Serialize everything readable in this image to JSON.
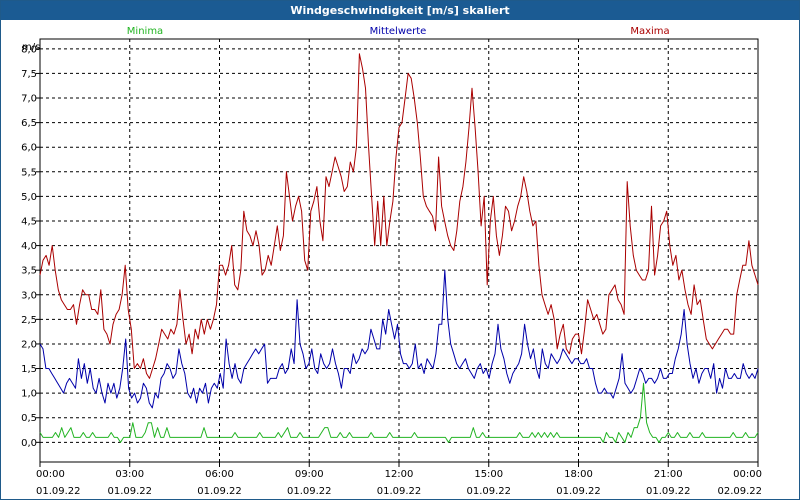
{
  "window": {
    "title": "Windgeschwindigkeit [m/s] skaliert"
  },
  "chart_data": {
    "type": "line",
    "y_unit_label": "m/s",
    "ylim": [
      -0.4,
      8.2
    ],
    "y_ticks": [
      "0,0",
      "0,5",
      "1,0",
      "1,5",
      "2,0",
      "2,5",
      "3,0",
      "3,5",
      "4,0",
      "4,5",
      "5,0",
      "5,5",
      "6,0",
      "6,5",
      "7,0",
      "7,5",
      "8,0"
    ],
    "x_range_hours": [
      0,
      24
    ],
    "x_ticks": [
      {
        "time": "00:00",
        "date": "01.09.22"
      },
      {
        "time": "03:00",
        "date": "01.09.22"
      },
      {
        "time": "06:00",
        "date": "01.09.22"
      },
      {
        "time": "09:00",
        "date": "01.09.22"
      },
      {
        "time": "12:00",
        "date": "01.09.22"
      },
      {
        "time": "15:00",
        "date": "01.09.22"
      },
      {
        "time": "18:00",
        "date": "01.09.22"
      },
      {
        "time": "21:00",
        "date": "01.09.22"
      },
      {
        "time": "00:00",
        "date": "02.09.22"
      }
    ],
    "grid": true,
    "legend_position": "top",
    "x_step_hours": 0.1667,
    "series": [
      {
        "name": "Minima",
        "color": "#22b422",
        "values": [
          0.2,
          0.1,
          0.1,
          0.1,
          0.1,
          0.2,
          0.1,
          0.3,
          0.1,
          0.2,
          0.3,
          0.1,
          0.1,
          0.1,
          0.2,
          0.1,
          0.1,
          0.2,
          0.1,
          0.1,
          0.1,
          0.1,
          0.1,
          0.2,
          0.1,
          0.1,
          0.0,
          0.1,
          0.1,
          0.1,
          0.4,
          0.1,
          0.1,
          0.1,
          0.2,
          0.4,
          0.4,
          0.1,
          0.3,
          0.1,
          0.1,
          0.3,
          0.1,
          0.1,
          0.1,
          0.1,
          0.1,
          0.1,
          0.1,
          0.1,
          0.1,
          0.1,
          0.1,
          0.3,
          0.1,
          0.1,
          0.1,
          0.1,
          0.1,
          0.1,
          0.1,
          0.1,
          0.1,
          0.2,
          0.1,
          0.1,
          0.1,
          0.1,
          0.1,
          0.1,
          0.1,
          0.2,
          0.1,
          0.1,
          0.1,
          0.1,
          0.1,
          0.2,
          0.1,
          0.2,
          0.3,
          0.1,
          0.1,
          0.1,
          0.2,
          0.1,
          0.1,
          0.1,
          0.1,
          0.1,
          0.1,
          0.2,
          0.3,
          0.3,
          0.1,
          0.1,
          0.1,
          0.2,
          0.1,
          0.1,
          0.2,
          0.1,
          0.1,
          0.1,
          0.1,
          0.1,
          0.1,
          0.2,
          0.1,
          0.1,
          0.1,
          0.1,
          0.1,
          0.2,
          0.1,
          0.1,
          0.1,
          0.1,
          0.1,
          0.1,
          0.1,
          0.2,
          0.1,
          0.1,
          0.1,
          0.1,
          0.1,
          0.1,
          0.1,
          0.1,
          0.1,
          0.1,
          0.0,
          0.1,
          0.1,
          0.1,
          0.1,
          0.1,
          0.1,
          0.1,
          0.3,
          0.1,
          0.1,
          0.2,
          0.1,
          0.1,
          0.1,
          0.1,
          0.1,
          0.1,
          0.1,
          0.1,
          0.1,
          0.1,
          0.1,
          0.2,
          0.1,
          0.1,
          0.1,
          0.2,
          0.1,
          0.2,
          0.1,
          0.2,
          0.1,
          0.2,
          0.1,
          0.2,
          0.1,
          0.1,
          0.1,
          0.1,
          0.1,
          0.1,
          0.1,
          0.1,
          0.1,
          0.1,
          0.1,
          0.1,
          0.1,
          0.1,
          0.0,
          0.2,
          0.1,
          0.1,
          0.0,
          0.2,
          0.1,
          0.0,
          0.2,
          0.1,
          0.3,
          0.3,
          0.5,
          1.2,
          0.4,
          0.2,
          0.1,
          0.1,
          0.0,
          0.1,
          0.1,
          0.2,
          0.1,
          0.1,
          0.2,
          0.1,
          0.1,
          0.1,
          0.2,
          0.1,
          0.1,
          0.1,
          0.2,
          0.1,
          0.1,
          0.1,
          0.1,
          0.1,
          0.1,
          0.1,
          0.1,
          0.1,
          0.2,
          0.1,
          0.1,
          0.1,
          0.2,
          0.1,
          0.1,
          0.1,
          0.2
        ]
      },
      {
        "name": "Mittelwerte",
        "color": "#0000aa",
        "values": [
          2.0,
          1.9,
          1.5,
          1.5,
          1.4,
          1.3,
          1.2,
          1.1,
          1.0,
          1.2,
          1.3,
          1.2,
          1.1,
          1.7,
          1.3,
          1.6,
          1.2,
          1.5,
          1.1,
          1.0,
          1.3,
          1.0,
          0.8,
          1.2,
          1.0,
          1.2,
          0.9,
          1.1,
          1.5,
          2.1,
          1.1,
          0.9,
          1.0,
          0.8,
          0.9,
          1.2,
          1.1,
          0.8,
          0.7,
          1.0,
          0.9,
          1.3,
          1.4,
          1.6,
          1.5,
          1.3,
          1.4,
          1.9,
          1.6,
          1.4,
          1.0,
          0.9,
          1.1,
          0.8,
          1.1,
          1.0,
          1.2,
          0.8,
          1.1,
          1.2,
          1.1,
          1.4,
          1.1,
          2.1,
          1.6,
          1.3,
          1.6,
          1.3,
          1.2,
          1.5,
          1.6,
          1.7,
          1.8,
          1.9,
          1.8,
          1.9,
          2.0,
          1.2,
          1.3,
          1.3,
          1.3,
          1.5,
          1.6,
          1.4,
          1.5,
          1.9,
          1.6,
          2.9,
          2.0,
          1.8,
          1.5,
          1.6,
          1.9,
          1.5,
          1.4,
          1.8,
          1.6,
          1.5,
          1.6,
          1.9,
          1.6,
          1.4,
          1.1,
          1.5,
          1.5,
          1.4,
          1.8,
          1.6,
          1.7,
          1.9,
          1.8,
          1.9,
          2.3,
          2.1,
          1.9,
          1.9,
          2.5,
          2.2,
          2.7,
          2.4,
          2.1,
          2.4,
          1.8,
          1.6,
          1.6,
          1.5,
          1.6,
          2.0,
          1.5,
          1.6,
          1.4,
          1.7,
          1.6,
          1.5,
          1.8,
          2.4,
          2.4,
          3.5,
          2.5,
          2.0,
          1.8,
          1.6,
          1.5,
          1.6,
          1.7,
          1.5,
          1.4,
          1.3,
          1.5,
          1.6,
          1.4,
          1.5,
          1.3,
          1.6,
          1.8,
          2.4,
          1.9,
          1.7,
          1.4,
          1.2,
          1.4,
          1.5,
          1.6,
          1.8,
          2.4,
          2.0,
          1.7,
          1.9,
          1.5,
          1.3,
          1.9,
          1.6,
          1.5,
          1.8,
          1.7,
          1.6,
          1.7,
          1.9,
          1.8,
          1.7,
          1.6,
          1.7,
          1.7,
          1.6,
          1.6,
          1.7,
          1.5,
          1.5,
          1.2,
          1.0,
          1.0,
          1.1,
          1.0,
          1.0,
          0.9,
          1.1,
          1.3,
          1.8,
          1.2,
          1.1,
          1.0,
          1.1,
          1.3,
          1.5,
          1.4,
          1.2,
          1.3,
          1.3,
          1.2,
          1.3,
          1.5,
          1.3,
          1.3,
          1.4,
          1.4,
          1.7,
          1.9,
          2.2,
          2.7,
          2.0,
          1.6,
          1.3,
          1.5,
          1.2,
          1.4,
          1.5,
          1.5,
          1.3,
          1.6,
          1.0,
          1.3,
          1.1,
          1.5,
          1.3,
          1.3,
          1.4,
          1.3,
          1.3,
          1.6,
          1.4,
          1.3,
          1.4,
          1.3,
          1.5
        ]
      },
      {
        "name": "Maxima",
        "color": "#aa0000",
        "values": [
          3.4,
          3.7,
          3.8,
          3.6,
          4.0,
          3.5,
          3.1,
          2.9,
          2.8,
          2.7,
          2.7,
          2.8,
          2.4,
          2.8,
          3.1,
          3.0,
          3.0,
          2.7,
          2.7,
          2.6,
          3.1,
          2.3,
          2.2,
          2.0,
          2.4,
          2.6,
          2.7,
          3.0,
          3.6,
          2.7,
          2.3,
          1.5,
          1.6,
          1.5,
          1.7,
          1.4,
          1.3,
          1.5,
          1.7,
          2.0,
          2.3,
          2.2,
          2.1,
          2.3,
          2.2,
          2.4,
          3.1,
          2.5,
          2.0,
          2.2,
          1.8,
          2.3,
          2.1,
          2.5,
          2.2,
          2.5,
          2.3,
          2.5,
          2.8,
          3.6,
          3.6,
          3.4,
          3.6,
          4.0,
          3.2,
          3.1,
          3.5,
          4.7,
          4.3,
          4.2,
          4.0,
          4.3,
          4.0,
          3.4,
          3.5,
          3.8,
          3.6,
          4.0,
          4.4,
          3.9,
          4.2,
          5.5,
          5.0,
          4.5,
          4.8,
          5.0,
          4.7,
          3.7,
          3.5,
          4.7,
          4.9,
          5.2,
          4.5,
          4.1,
          5.4,
          5.2,
          5.5,
          5.8,
          5.6,
          5.4,
          5.1,
          5.2,
          5.7,
          5.5,
          6.0,
          7.9,
          7.6,
          7.2,
          6.0,
          5.0,
          4.0,
          4.9,
          4.0,
          5.0,
          4.0,
          4.5,
          4.9,
          5.8,
          6.4,
          6.5,
          7.0,
          7.5,
          7.4,
          7.0,
          6.5,
          5.8,
          5.0,
          4.8,
          4.7,
          4.6,
          4.3,
          5.8,
          4.8,
          4.5,
          4.2,
          4.0,
          3.9,
          4.3,
          4.9,
          5.2,
          5.7,
          6.4,
          7.2,
          6.4,
          5.5,
          4.4,
          5.0,
          3.2,
          4.5,
          5.0,
          4.2,
          3.8,
          4.2,
          4.8,
          4.7,
          4.3,
          4.5,
          4.8,
          5.0,
          5.4,
          5.1,
          4.7,
          4.4,
          4.5,
          3.6,
          3.0,
          2.8,
          2.6,
          2.8,
          2.5,
          1.9,
          2.2,
          2.4,
          1.9,
          1.8,
          2.1,
          2.2,
          2.2,
          1.8,
          2.3,
          2.9,
          2.7,
          2.5,
          2.6,
          2.4,
          2.2,
          2.3,
          3.0,
          3.1,
          3.2,
          2.9,
          2.8,
          2.6,
          5.3,
          4.4,
          3.8,
          3.5,
          3.4,
          3.3,
          3.3,
          3.5,
          4.8,
          3.4,
          3.8,
          4.4,
          4.5,
          4.7,
          4.0,
          3.6,
          3.8,
          3.3,
          3.5,
          3.1,
          2.8,
          2.6,
          3.2,
          2.8,
          2.9,
          2.5,
          2.1,
          2.0,
          1.9,
          2.0,
          2.1,
          2.2,
          2.3,
          2.3,
          2.2,
          2.2,
          3.0,
          3.3,
          3.6,
          3.6,
          4.1,
          3.6,
          3.4,
          3.2
        ]
      }
    ]
  }
}
